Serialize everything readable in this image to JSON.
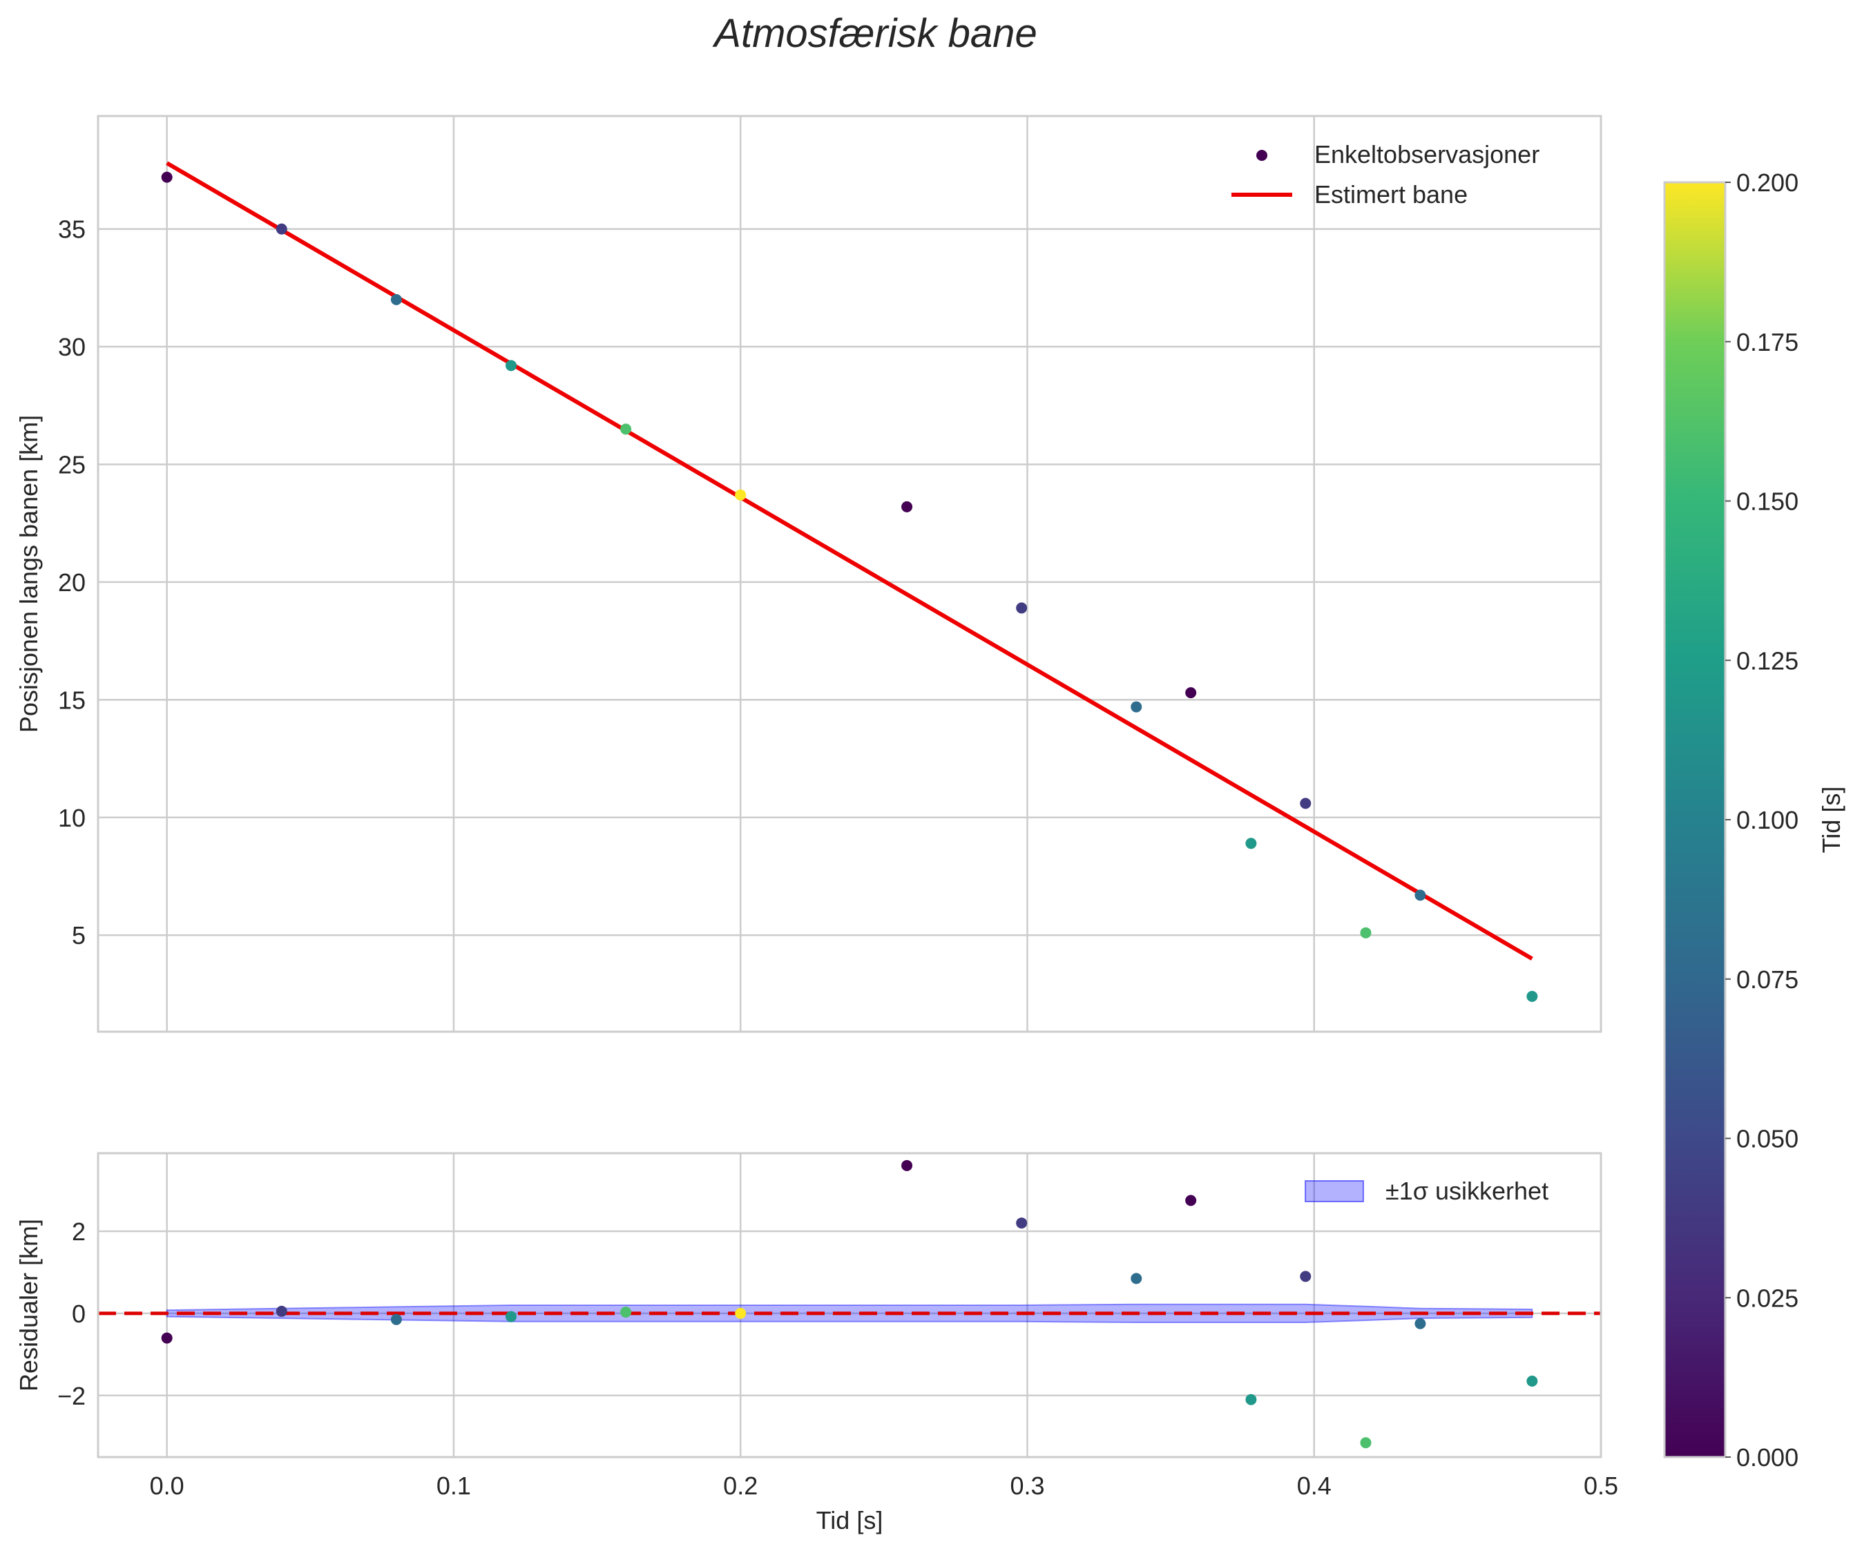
{
  "chart_data": {
    "type": "scatter",
    "title": "Atmosfærisk bane",
    "colors": {
      "fit_line": "#ee0000",
      "grid": "#cccccc",
      "frame": "#cccccc",
      "band_fill": "#0000ff",
      "zero_line": "#dd0000"
    },
    "top": {
      "ylabel": "Posisjonen langs banen [km]",
      "xlim": [
        -0.024,
        0.5
      ],
      "ylim": [
        0.9,
        39.8
      ],
      "xticks": [
        0.0,
        0.1,
        0.2,
        0.3,
        0.4,
        0.5
      ],
      "yticks": [
        5,
        10,
        15,
        20,
        25,
        30,
        35
      ],
      "ytick_labels": [
        "5",
        "10",
        "15",
        "20",
        "25",
        "30",
        "35"
      ],
      "legend": {
        "placement": "top-right",
        "scatter_label": "Enkeltobservasjoner",
        "line_label": "Estimert bane"
      },
      "fit_line": {
        "x": [
          0.0,
          0.476
        ],
        "y": [
          37.8,
          4.0
        ]
      },
      "points": [
        {
          "x": 0.0,
          "y": 37.2,
          "c": 0.0
        },
        {
          "x": 0.04,
          "y": 35.0,
          "c": 0.04
        },
        {
          "x": 0.08,
          "y": 32.0,
          "c": 0.08
        },
        {
          "x": 0.12,
          "y": 29.2,
          "c": 0.12
        },
        {
          "x": 0.16,
          "y": 26.5,
          "c": 0.16
        },
        {
          "x": 0.2,
          "y": 23.7,
          "c": 0.2
        },
        {
          "x": 0.258,
          "y": 23.2,
          "c": 0.0
        },
        {
          "x": 0.298,
          "y": 18.9,
          "c": 0.04
        },
        {
          "x": 0.338,
          "y": 14.7,
          "c": 0.08
        },
        {
          "x": 0.357,
          "y": 15.3,
          "c": 0.0
        },
        {
          "x": 0.378,
          "y": 8.9,
          "c": 0.12
        },
        {
          "x": 0.397,
          "y": 10.6,
          "c": 0.04
        },
        {
          "x": 0.418,
          "y": 5.1,
          "c": 0.16
        },
        {
          "x": 0.437,
          "y": 6.7,
          "c": 0.08
        },
        {
          "x": 0.476,
          "y": 2.4,
          "c": 0.12
        }
      ]
    },
    "bottom": {
      "ylabel": "Residualer [km]",
      "xlabel": "Tid [s]",
      "xlim": [
        -0.024,
        0.5
      ],
      "ylim": [
        -3.5,
        3.9
      ],
      "xticks": [
        0.0,
        0.1,
        0.2,
        0.3,
        0.4,
        0.5
      ],
      "xtick_labels": [
        "0.0",
        "0.1",
        "0.2",
        "0.3",
        "0.4",
        "0.5"
      ],
      "yticks": [
        -2,
        0,
        2
      ],
      "ytick_labels": [
        "−2",
        "0",
        "2"
      ],
      "legend": {
        "placement": "top-right",
        "band_label": "±1σ usikkerhet"
      },
      "band": {
        "x": [
          0.0,
          0.04,
          0.08,
          0.12,
          0.16,
          0.2,
          0.258,
          0.298,
          0.338,
          0.357,
          0.378,
          0.397,
          0.418,
          0.437,
          0.476
        ],
        "sigma": [
          0.08,
          0.12,
          0.16,
          0.2,
          0.2,
          0.2,
          0.2,
          0.2,
          0.22,
          0.22,
          0.22,
          0.22,
          0.17,
          0.12,
          0.1
        ]
      },
      "points": [
        {
          "x": 0.0,
          "y": -0.6,
          "c": 0.0
        },
        {
          "x": 0.04,
          "y": 0.05,
          "c": 0.04
        },
        {
          "x": 0.08,
          "y": -0.15,
          "c": 0.08
        },
        {
          "x": 0.12,
          "y": -0.08,
          "c": 0.12
        },
        {
          "x": 0.16,
          "y": 0.03,
          "c": 0.16
        },
        {
          "x": 0.2,
          "y": 0.0,
          "c": 0.2
        },
        {
          "x": 0.258,
          "y": 3.6,
          "c": 0.0
        },
        {
          "x": 0.298,
          "y": 2.2,
          "c": 0.04
        },
        {
          "x": 0.338,
          "y": 0.85,
          "c": 0.08
        },
        {
          "x": 0.357,
          "y": 2.75,
          "c": 0.0
        },
        {
          "x": 0.378,
          "y": -2.1,
          "c": 0.12
        },
        {
          "x": 0.397,
          "y": 0.9,
          "c": 0.04
        },
        {
          "x": 0.418,
          "y": -3.15,
          "c": 0.16
        },
        {
          "x": 0.437,
          "y": -0.25,
          "c": 0.08
        },
        {
          "x": 0.476,
          "y": -1.65,
          "c": 0.12
        }
      ]
    },
    "colorbar": {
      "label": "Tid [s]",
      "range": [
        0.0,
        0.2
      ],
      "ticks": [
        0.0,
        0.025,
        0.05,
        0.075,
        0.1,
        0.125,
        0.15,
        0.175,
        0.2
      ],
      "tick_labels": [
        "0.000",
        "0.025",
        "0.050",
        "0.075",
        "0.100",
        "0.125",
        "0.150",
        "0.175",
        "0.200"
      ],
      "colormap": "viridis"
    }
  }
}
